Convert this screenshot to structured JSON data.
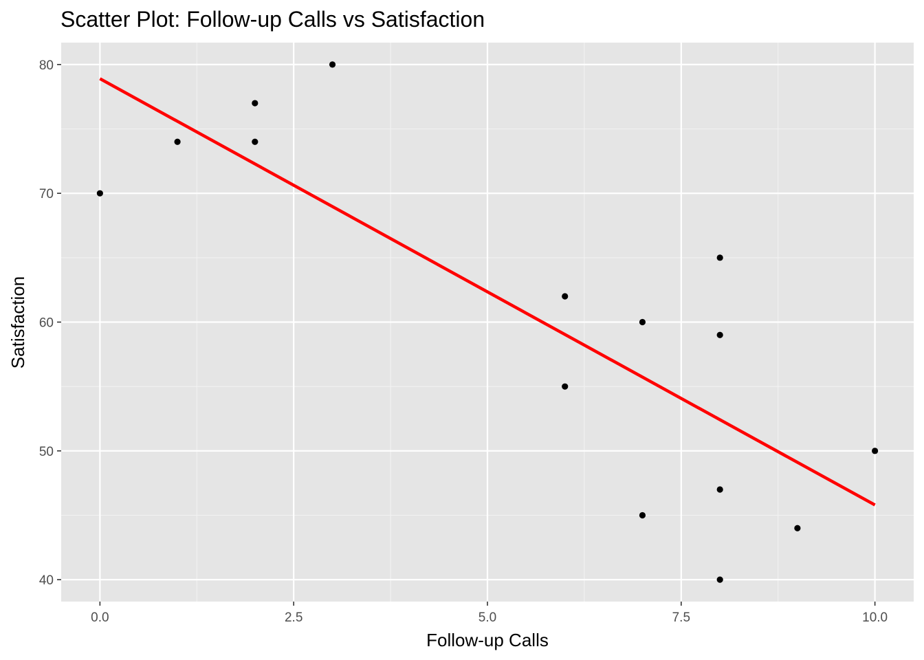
{
  "chart_data": {
    "type": "scatter",
    "title": "Scatter Plot: Follow-up Calls vs Satisfaction",
    "xlabel": "Follow-up Calls",
    "ylabel": "Satisfaction",
    "xlim": [
      -0.5,
      10.5
    ],
    "ylim": [
      38.3,
      81.7
    ],
    "x_ticks": [
      0.0,
      2.5,
      5.0,
      7.5,
      10.0
    ],
    "x_tick_labels": [
      "0.0",
      "2.5",
      "5.0",
      "7.5",
      "10.0"
    ],
    "y_ticks": [
      40,
      50,
      60,
      70,
      80
    ],
    "y_tick_labels": [
      "40",
      "50",
      "60",
      "70",
      "80"
    ],
    "grid": true,
    "legend": "none",
    "series": [
      {
        "type": "scatter",
        "color": "#000000",
        "points": [
          {
            "x": 0,
            "y": 70
          },
          {
            "x": 1,
            "y": 74
          },
          {
            "x": 2,
            "y": 77
          },
          {
            "x": 2,
            "y": 74
          },
          {
            "x": 3,
            "y": 80
          },
          {
            "x": 6,
            "y": 62
          },
          {
            "x": 6,
            "y": 55
          },
          {
            "x": 7,
            "y": 60
          },
          {
            "x": 7,
            "y": 45
          },
          {
            "x": 8,
            "y": 65
          },
          {
            "x": 8,
            "y": 59
          },
          {
            "x": 8,
            "y": 47
          },
          {
            "x": 8,
            "y": 40
          },
          {
            "x": 9,
            "y": 44
          },
          {
            "x": 10,
            "y": 50
          }
        ]
      },
      {
        "type": "line",
        "color": "#ff0000",
        "points": [
          {
            "x": 0,
            "y": 78.9
          },
          {
            "x": 10,
            "y": 45.8
          }
        ]
      }
    ],
    "colors": {
      "panel_background": "#e5e5e5",
      "grid_major": "#ffffff",
      "grid_minor": "#f2f2f2",
      "points": "#000000",
      "fit_line": "#ff0000"
    }
  }
}
